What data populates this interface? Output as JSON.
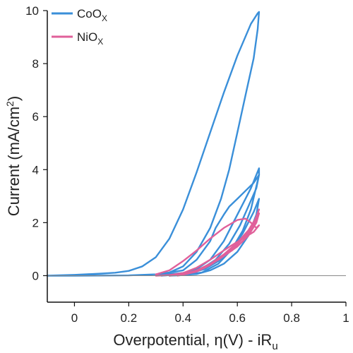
{
  "chart_data": {
    "type": "line",
    "xlabel": "Overpotential, η(V) - iR",
    "xlabel_sub": "u",
    "ylabel": "Current (mA/cm",
    "ylabel_sup": "2",
    "ylabel_end": ")",
    "xlim": [
      -0.1,
      1.0
    ],
    "ylim": [
      -1,
      10
    ],
    "x_ticks": [
      0,
      0.2,
      0.4,
      0.6,
      0.8,
      1
    ],
    "x_tick_labels": [
      "0",
      "0.2",
      "0.4",
      "0.6",
      "0.8",
      "1"
    ],
    "y_ticks": [
      0,
      2,
      4,
      6,
      8,
      10
    ],
    "y_tick_labels": [
      "0",
      "2",
      "4",
      "6",
      "8",
      "10"
    ],
    "grid": false,
    "zero_line": true,
    "legend_position": "top-left",
    "series": [
      {
        "name": "CoO",
        "name_sub": "X",
        "color": "#3a8fd9",
        "curves": [
          [
            [
              -0.1,
              0.0
            ],
            [
              0.0,
              0.03
            ],
            [
              0.1,
              0.08
            ],
            [
              0.15,
              0.11
            ],
            [
              0.2,
              0.18
            ],
            [
              0.25,
              0.35
            ],
            [
              0.3,
              0.7
            ],
            [
              0.35,
              1.4
            ],
            [
              0.4,
              2.5
            ],
            [
              0.45,
              3.9
            ],
            [
              0.5,
              5.4
            ],
            [
              0.55,
              6.9
            ],
            [
              0.6,
              8.3
            ],
            [
              0.65,
              9.5
            ],
            [
              0.675,
              9.9
            ],
            [
              0.68,
              9.95
            ],
            [
              0.675,
              9.3
            ],
            [
              0.66,
              8.2
            ],
            [
              0.63,
              6.8
            ],
            [
              0.6,
              5.4
            ],
            [
              0.57,
              4.0
            ],
            [
              0.54,
              2.9
            ],
            [
              0.5,
              1.8
            ],
            [
              0.45,
              0.9
            ],
            [
              0.4,
              0.35
            ],
            [
              0.35,
              0.12
            ],
            [
              0.3,
              0.05
            ],
            [
              0.2,
              0.01
            ],
            [
              0.0,
              0.0
            ],
            [
              -0.1,
              0.0
            ]
          ],
          [
            [
              0.3,
              0.02
            ],
            [
              0.4,
              0.1
            ],
            [
              0.45,
              0.25
            ],
            [
              0.5,
              0.6
            ],
            [
              0.55,
              1.3
            ],
            [
              0.6,
              2.3
            ],
            [
              0.65,
              3.3
            ],
            [
              0.68,
              4.05
            ],
            [
              0.68,
              3.8
            ],
            [
              0.66,
              3.5
            ],
            [
              0.63,
              3.2
            ],
            [
              0.6,
              2.9
            ],
            [
              0.57,
              2.6
            ],
            [
              0.55,
              2.3
            ],
            [
              0.52,
              1.8
            ],
            [
              0.5,
              1.3
            ],
            [
              0.45,
              0.6
            ],
            [
              0.4,
              0.2
            ],
            [
              0.3,
              0.03
            ]
          ],
          [
            [
              0.32,
              0.0
            ],
            [
              0.42,
              0.08
            ],
            [
              0.48,
              0.25
            ],
            [
              0.53,
              0.55
            ],
            [
              0.58,
              1.0
            ],
            [
              0.62,
              1.7
            ],
            [
              0.65,
              2.5
            ],
            [
              0.68,
              3.8
            ],
            [
              0.67,
              3.3
            ],
            [
              0.64,
              2.6
            ],
            [
              0.61,
              1.9
            ],
            [
              0.57,
              1.2
            ],
            [
              0.52,
              0.6
            ],
            [
              0.46,
              0.2
            ],
            [
              0.4,
              0.06
            ],
            [
              0.32,
              0.0
            ]
          ],
          [
            [
              0.35,
              0.0
            ],
            [
              0.45,
              0.06
            ],
            [
              0.5,
              0.2
            ],
            [
              0.55,
              0.45
            ],
            [
              0.6,
              0.9
            ],
            [
              0.64,
              1.5
            ],
            [
              0.67,
              2.3
            ],
            [
              0.68,
              2.9
            ],
            [
              0.66,
              2.4
            ],
            [
              0.62,
              1.6
            ],
            [
              0.58,
              1.0
            ],
            [
              0.53,
              0.45
            ],
            [
              0.47,
              0.12
            ],
            [
              0.4,
              0.02
            ],
            [
              0.35,
              0.0
            ]
          ]
        ]
      },
      {
        "name": "NiO",
        "name_sub": "X",
        "color": "#e0609a",
        "curves": [
          [
            [
              0.3,
              0.05
            ],
            [
              0.35,
              0.2
            ],
            [
              0.4,
              0.55
            ],
            [
              0.45,
              0.95
            ],
            [
              0.5,
              1.4
            ],
            [
              0.55,
              1.8
            ],
            [
              0.6,
              2.1
            ],
            [
              0.63,
              2.15
            ],
            [
              0.65,
              2.0
            ],
            [
              0.67,
              1.8
            ],
            [
              0.68,
              1.9
            ],
            [
              0.66,
              1.65
            ],
            [
              0.62,
              1.4
            ],
            [
              0.58,
              1.15
            ],
            [
              0.55,
              0.95
            ],
            [
              0.5,
              0.6
            ],
            [
              0.45,
              0.3
            ],
            [
              0.4,
              0.1
            ],
            [
              0.35,
              0.02
            ],
            [
              0.3,
              0.0
            ]
          ],
          [
            [
              0.35,
              0.02
            ],
            [
              0.42,
              0.1
            ],
            [
              0.48,
              0.3
            ],
            [
              0.53,
              0.6
            ],
            [
              0.58,
              0.95
            ],
            [
              0.62,
              1.3
            ],
            [
              0.65,
              1.7
            ],
            [
              0.68,
              2.5
            ],
            [
              0.67,
              2.2
            ],
            [
              0.64,
              1.7
            ],
            [
              0.6,
              1.25
            ],
            [
              0.55,
              0.8
            ],
            [
              0.5,
              0.45
            ],
            [
              0.45,
              0.2
            ],
            [
              0.4,
              0.05
            ],
            [
              0.35,
              0.0
            ]
          ],
          [
            [
              0.38,
              0.0
            ],
            [
              0.45,
              0.15
            ],
            [
              0.5,
              0.4
            ],
            [
              0.55,
              0.75
            ],
            [
              0.6,
              1.1
            ],
            [
              0.64,
              1.5
            ],
            [
              0.67,
              2.0
            ],
            [
              0.68,
              2.35
            ],
            [
              0.66,
              1.9
            ],
            [
              0.62,
              1.4
            ],
            [
              0.58,
              1.0
            ],
            [
              0.53,
              0.6
            ],
            [
              0.47,
              0.28
            ],
            [
              0.42,
              0.08
            ],
            [
              0.38,
              0.0
            ]
          ]
        ]
      }
    ]
  }
}
